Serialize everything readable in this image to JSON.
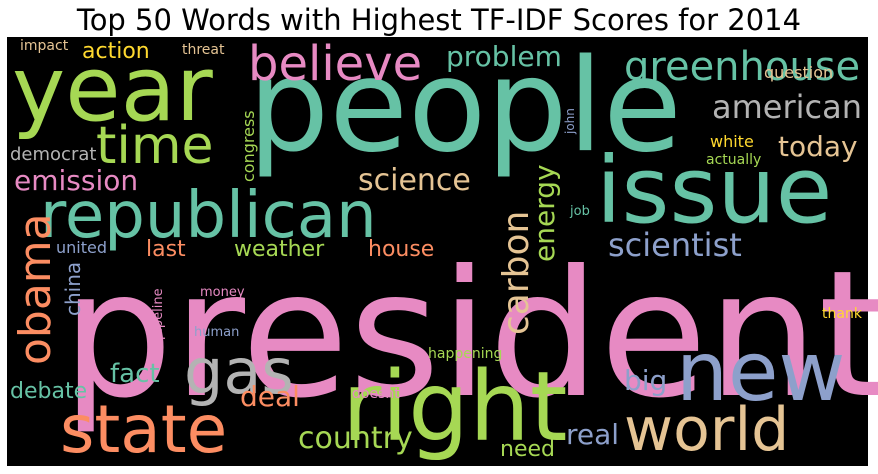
{
  "chart_data": {
    "type": "wordcloud",
    "title": "Top 50 Words with Highest TF-IDF Scores for 2014",
    "background": "#000000",
    "palette": [
      "#66c2a5",
      "#fc8d62",
      "#8da0cb",
      "#e78ac3",
      "#a6d854",
      "#ffd92f",
      "#e5c494",
      "#b3b3b3"
    ],
    "words": [
      {
        "text": "president",
        "color": "#e78ac3",
        "vertical": false
      },
      {
        "text": "people",
        "color": "#66c2a5",
        "vertical": false
      },
      {
        "text": "year",
        "color": "#a6d854",
        "vertical": false
      },
      {
        "text": "issue",
        "color": "#66c2a5",
        "vertical": false
      },
      {
        "text": "right",
        "color": "#a6d854",
        "vertical": false
      },
      {
        "text": "new",
        "color": "#8da0cb",
        "vertical": false
      },
      {
        "text": "republican",
        "color": "#66c2a5",
        "vertical": false
      },
      {
        "text": "state",
        "color": "#fc8d62",
        "vertical": false
      },
      {
        "text": "world",
        "color": "#e5c494",
        "vertical": false
      },
      {
        "text": "gas",
        "color": "#b3b3b3",
        "vertical": false
      },
      {
        "text": "time",
        "color": "#a6d854",
        "vertical": false
      },
      {
        "text": "believe",
        "color": "#e78ac3",
        "vertical": false
      },
      {
        "text": "obama",
        "color": "#fc8d62",
        "vertical": true
      },
      {
        "text": "greenhouse",
        "color": "#66c2a5",
        "vertical": false
      },
      {
        "text": "carbon",
        "color": "#e5c494",
        "vertical": true
      },
      {
        "text": "american",
        "color": "#b3b3b3",
        "vertical": false
      },
      {
        "text": "scientist",
        "color": "#8da0cb",
        "vertical": false
      },
      {
        "text": "country",
        "color": "#a6d854",
        "vertical": false
      },
      {
        "text": "science",
        "color": "#e5c494",
        "vertical": false
      },
      {
        "text": "problem",
        "color": "#66c2a5",
        "vertical": false
      },
      {
        "text": "emission",
        "color": "#e78ac3",
        "vertical": false
      },
      {
        "text": "today",
        "color": "#e5c494",
        "vertical": false
      },
      {
        "text": "energy",
        "color": "#a6d854",
        "vertical": true
      },
      {
        "text": "deal",
        "color": "#fc8d62",
        "vertical": false
      },
      {
        "text": "big",
        "color": "#8da0cb",
        "vertical": false
      },
      {
        "text": "real",
        "color": "#8da0cb",
        "vertical": false
      },
      {
        "text": "fact",
        "color": "#66c2a5",
        "vertical": false
      },
      {
        "text": "action",
        "color": "#ffd92f",
        "vertical": false
      },
      {
        "text": "weather",
        "color": "#a6d854",
        "vertical": false
      },
      {
        "text": "house",
        "color": "#fc8d62",
        "vertical": false
      },
      {
        "text": "debate",
        "color": "#66c2a5",
        "vertical": false
      },
      {
        "text": "last",
        "color": "#fc8d62",
        "vertical": false
      },
      {
        "text": "need",
        "color": "#a6d854",
        "vertical": false
      },
      {
        "text": "china",
        "color": "#8da0cb",
        "vertical": true
      },
      {
        "text": "democrat",
        "color": "#b3b3b3",
        "vertical": false
      },
      {
        "text": "question",
        "color": "#e5c494",
        "vertical": false
      },
      {
        "text": "congress",
        "color": "#a6d854",
        "vertical": true
      },
      {
        "text": "united",
        "color": "#8da0cb",
        "vertical": false
      },
      {
        "text": "white",
        "color": "#ffd92f",
        "vertical": false
      },
      {
        "text": "actually",
        "color": "#a6d854",
        "vertical": false
      },
      {
        "text": "impact",
        "color": "#e5c494",
        "vertical": false
      },
      {
        "text": "threat",
        "color": "#e5c494",
        "vertical": false
      },
      {
        "text": "pipeline",
        "color": "#e78ac3",
        "vertical": true
      },
      {
        "text": "money",
        "color": "#e78ac3",
        "vertical": false
      },
      {
        "text": "human",
        "color": "#8da0cb",
        "vertical": false
      },
      {
        "text": "happening",
        "color": "#a6d854",
        "vertical": false
      },
      {
        "text": "doesnt",
        "color": "#e78ac3",
        "vertical": false
      },
      {
        "text": "job",
        "color": "#66c2a5",
        "vertical": false
      },
      {
        "text": "thank",
        "color": "#ffd92f",
        "vertical": false
      },
      {
        "text": "john",
        "color": "#8da0cb",
        "vertical": true
      }
    ]
  }
}
